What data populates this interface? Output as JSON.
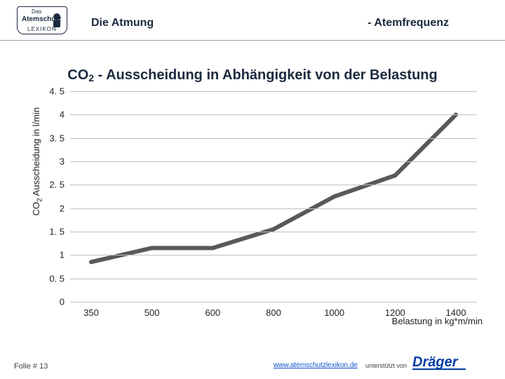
{
  "header": {
    "logo_top": "Das",
    "logo_mid": "Atemschutz",
    "logo_bot": "LEXIKON",
    "lecture_title": "Die Atmung",
    "page_title": "- Atemfrequenz"
  },
  "chart": {
    "type": "line",
    "title_pre": "CO",
    "title_sub": "2",
    "title_post": " - Ausscheidung in Abhängigkeit von der Belastung",
    "y_label_pre": "CO",
    "y_label_sub": "2",
    "y_label_post": " Ausscheidung in l/min",
    "x_label": "Belastung in kg*m/min",
    "ylim": [
      0,
      4.5
    ],
    "ytick_step": 0.5,
    "y_ticks": [
      "0",
      "0. 5",
      "1",
      "1. 5",
      "2",
      "2. 5",
      "3",
      "3. 5",
      "4",
      "4. 5"
    ],
    "x_categories": [
      "350",
      "500",
      "600",
      "800",
      "1000",
      "1200",
      "1400"
    ],
    "values": [
      0.85,
      1.15,
      1.15,
      1.55,
      2.25,
      2.7,
      4.0
    ],
    "line_color": "#595959",
    "line_width": 6,
    "grid_color": "#bfbfbf",
    "background_color": "#ffffff",
    "title_fontsize": 20,
    "label_fontsize": 13
  },
  "footer": {
    "folie_label": "Folie # 13",
    "site_url": "www.atemschutzlexikon.de",
    "supported_label": "unterstützt von",
    "sponsor": "Dräger"
  }
}
